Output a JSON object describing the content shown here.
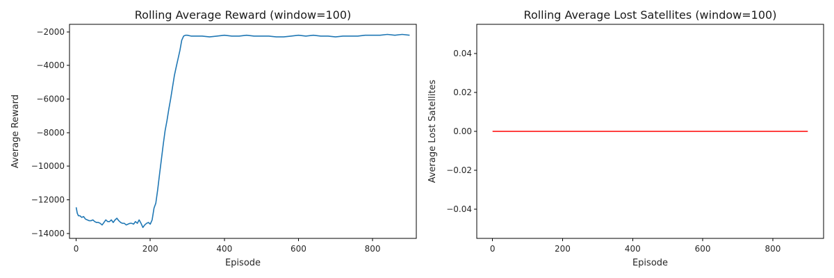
{
  "chart_data": [
    {
      "type": "line",
      "title": "Rolling Average Reward (window=100)",
      "xlabel": "Episode",
      "ylabel": "Average Reward",
      "xlim": [
        -18,
        918
      ],
      "ylim": [
        -14300,
        -1550
      ],
      "xticks": [
        0,
        200,
        400,
        600,
        800
      ],
      "yticks": [
        -14000,
        -12000,
        -10000,
        -8000,
        -6000,
        -4000,
        -2000
      ],
      "grid": false,
      "color": "#1f77b4",
      "series": [
        {
          "x": [
            0,
            3,
            6,
            10,
            15,
            20,
            25,
            30,
            35,
            40,
            45,
            50,
            55,
            60,
            65,
            70,
            75,
            80,
            85,
            90,
            95,
            100,
            105,
            110,
            115,
            120,
            125,
            130,
            135,
            140,
            145,
            150,
            155,
            160,
            165,
            170,
            175,
            180,
            185,
            190,
            195,
            200,
            205,
            210,
            215,
            220,
            225,
            230,
            235,
            240,
            245,
            250,
            255,
            260,
            265,
            270,
            275,
            280,
            285,
            290,
            295,
            300,
            310,
            320,
            340,
            360,
            380,
            400,
            420,
            440,
            460,
            480,
            500,
            520,
            540,
            560,
            580,
            600,
            620,
            640,
            660,
            680,
            700,
            720,
            740,
            760,
            780,
            800,
            820,
            840,
            860,
            880,
            900
          ],
          "y": [
            -12450,
            -12800,
            -12950,
            -12950,
            -13050,
            -13000,
            -13150,
            -13200,
            -13250,
            -13250,
            -13200,
            -13300,
            -13350,
            -13350,
            -13400,
            -13500,
            -13350,
            -13200,
            -13300,
            -13300,
            -13200,
            -13350,
            -13200,
            -13100,
            -13250,
            -13350,
            -13400,
            -13400,
            -13500,
            -13450,
            -13400,
            -13400,
            -13450,
            -13300,
            -13400,
            -13200,
            -13400,
            -13650,
            -13500,
            -13400,
            -13350,
            -13450,
            -13200,
            -12500,
            -12200,
            -11400,
            -10500,
            -9600,
            -8700,
            -7900,
            -7300,
            -6600,
            -6000,
            -5300,
            -4600,
            -4100,
            -3600,
            -3100,
            -2500,
            -2250,
            -2200,
            -2200,
            -2250,
            -2250,
            -2250,
            -2300,
            -2250,
            -2200,
            -2250,
            -2250,
            -2200,
            -2250,
            -2250,
            -2250,
            -2300,
            -2300,
            -2250,
            -2200,
            -2250,
            -2200,
            -2250,
            -2250,
            -2300,
            -2250,
            -2250,
            -2250,
            -2200,
            -2200,
            -2200,
            -2150,
            -2200,
            -2150,
            -2200
          ]
        }
      ]
    },
    {
      "type": "line",
      "title": "Rolling Average Lost Satellites (window=100)",
      "xlabel": "Episode",
      "ylabel": "Average Lost Satellites",
      "xlim": [
        -45,
        945
      ],
      "ylim": [
        -0.055,
        0.055
      ],
      "xticks": [
        0,
        200,
        400,
        600,
        800
      ],
      "yticks": [
        -0.04,
        -0.02,
        0.0,
        0.02,
        0.04
      ],
      "ytick_labels": [
        "−0.04",
        "−0.02",
        "0.00",
        "0.02",
        "0.04"
      ],
      "grid": false,
      "color": "#ff0000",
      "series": [
        {
          "x": [
            0,
            900
          ],
          "y": [
            0,
            0
          ]
        }
      ]
    }
  ]
}
